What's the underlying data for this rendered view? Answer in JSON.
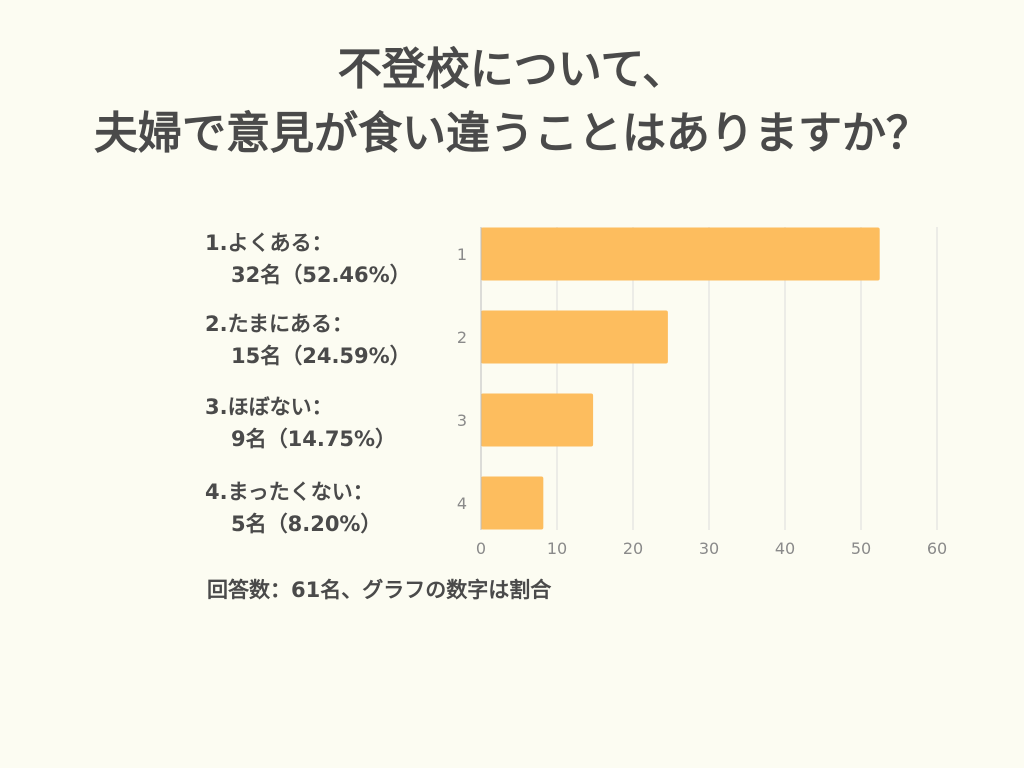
{
  "title_lines": [
    "不登校について、",
    "夫婦で意見が食い違うことはありますか？"
  ],
  "answers": [
    {
      "line1": "1.よくある：",
      "line2": "32名（52.46%）"
    },
    {
      "line1": "2.たまにある：",
      "line2": "15名（24.59%）"
    },
    {
      "line1": "3.ほぼない：",
      "line2": "9名（14.75%）"
    },
    {
      "line1": "4.まったくない：",
      "line2": "5名（8.20%）"
    }
  ],
  "footnote": "回答数：61名、グラフの数字は割合",
  "bar_color": "#fdbd5e",
  "grid_color": "#dcdcdc",
  "chart_data": {
    "type": "bar",
    "orientation": "horizontal",
    "categories": [
      "1",
      "2",
      "3",
      "4"
    ],
    "values": [
      52.46,
      24.59,
      14.75,
      8.2
    ],
    "xlim": [
      0,
      60
    ],
    "xticks": [
      0,
      10,
      20,
      30,
      40,
      50,
      60
    ],
    "grid": true,
    "title": "",
    "xlabel": "",
    "ylabel": ""
  }
}
